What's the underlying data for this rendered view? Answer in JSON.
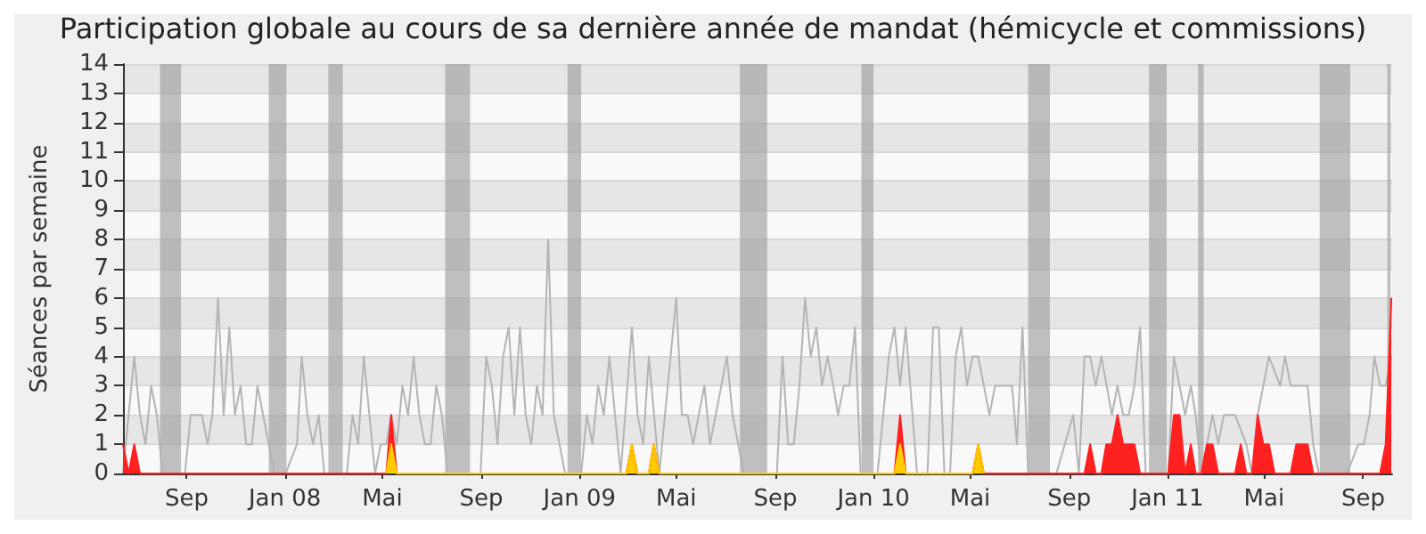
{
  "chart_data": {
    "type": "line",
    "title": "Participation globale au cours de sa dernière année de mandat (hémicycle et commissions)",
    "ylabel": "Séances par semaine",
    "xlim": [
      "2007-06-14",
      "2011-10-07"
    ],
    "xticks": [
      {
        "value": "2007-09-01",
        "label": "Sep"
      },
      {
        "value": "2008-01-01",
        "label": "Jan 08"
      },
      {
        "value": "2008-05-01",
        "label": "Mai"
      },
      {
        "value": "2008-09-01",
        "label": "Sep"
      },
      {
        "value": "2009-01-01",
        "label": "Jan 09"
      },
      {
        "value": "2009-05-01",
        "label": "Mai"
      },
      {
        "value": "2009-09-01",
        "label": "Sep"
      },
      {
        "value": "2010-01-01",
        "label": "Jan 10"
      },
      {
        "value": "2010-05-01",
        "label": "Mai"
      },
      {
        "value": "2010-09-01",
        "label": "Sep"
      },
      {
        "value": "2011-01-01",
        "label": "Jan 11"
      },
      {
        "value": "2011-05-01",
        "label": "Mai"
      },
      {
        "value": "2011-09-01",
        "label": "Sep"
      }
    ],
    "ylim": [
      0,
      14
    ],
    "yticks": [
      0,
      1,
      2,
      3,
      4,
      5,
      6,
      7,
      8,
      9,
      10,
      11,
      12,
      13,
      14
    ],
    "grid": "y",
    "bands": [
      {
        "axis": "x",
        "from": "2007-07-30",
        "to": "2007-08-25",
        "color": "#a0a0a0"
      },
      {
        "axis": "x",
        "from": "2007-12-12",
        "to": "2008-01-03",
        "color": "#a0a0a0"
      },
      {
        "axis": "x",
        "from": "2008-02-24",
        "to": "2008-03-13",
        "color": "#a0a0a0"
      },
      {
        "axis": "x",
        "from": "2008-07-18",
        "to": "2008-08-18",
        "color": "#a0a0a0"
      },
      {
        "axis": "x",
        "from": "2008-12-17",
        "to": "2009-01-03",
        "color": "#a0a0a0"
      },
      {
        "axis": "x",
        "from": "2009-07-19",
        "to": "2009-08-22",
        "color": "#a0a0a0"
      },
      {
        "axis": "x",
        "from": "2009-12-17",
        "to": "2010-01-01",
        "color": "#a0a0a0"
      },
      {
        "axis": "x",
        "from": "2010-07-12",
        "to": "2010-08-08",
        "color": "#a0a0a0"
      },
      {
        "axis": "x",
        "from": "2010-12-09",
        "to": "2010-12-31",
        "color": "#a0a0a0"
      },
      {
        "axis": "x",
        "from": "2011-02-08",
        "to": "2011-02-15",
        "color": "#a0a0a0"
      },
      {
        "axis": "x",
        "from": "2011-07-09",
        "to": "2011-08-16",
        "color": "#a0a0a0"
      },
      {
        "axis": "x",
        "from": "2011-10-01",
        "to": "2011-10-05",
        "color": "#a0a0a0"
      }
    ],
    "series": [
      {
        "type": "line",
        "color": "#b4b4b4",
        "x": [
          "2007-06-14",
          "2007-06-28",
          "2007-07-05",
          "2007-07-12",
          "2007-07-19",
          "2007-07-26",
          "2007-08-02",
          "2007-08-30",
          "2007-09-06",
          "2007-09-20",
          "2007-09-27",
          "2007-10-03",
          "2007-10-10",
          "2007-10-17",
          "2007-10-24",
          "2007-10-31",
          "2007-11-07",
          "2007-11-14",
          "2007-11-21",
          "2007-11-28",
          "2007-12-05",
          "2007-12-19",
          "2008-01-02",
          "2008-01-16",
          "2008-01-22",
          "2008-01-29",
          "2008-02-05",
          "2008-02-12",
          "2008-02-19",
          "2008-03-18",
          "2008-03-25",
          "2008-04-01",
          "2008-04-08",
          "2008-04-15",
          "2008-04-22",
          "2008-04-29",
          "2008-05-06",
          "2008-05-12",
          "2008-05-19",
          "2008-05-26",
          "2008-06-02",
          "2008-06-09",
          "2008-06-16",
          "2008-06-23",
          "2008-06-30",
          "2008-07-07",
          "2008-07-14",
          "2008-07-21",
          "2008-08-31",
          "2008-09-07",
          "2008-09-14",
          "2008-09-21",
          "2008-09-28",
          "2008-10-05",
          "2008-10-12",
          "2008-10-19",
          "2008-10-26",
          "2008-11-02",
          "2008-11-09",
          "2008-11-16",
          "2008-11-23",
          "2008-11-30",
          "2008-12-14",
          "2009-01-03",
          "2009-01-10",
          "2009-01-17",
          "2009-01-24",
          "2009-01-31",
          "2009-02-07",
          "2009-02-14",
          "2009-02-21",
          "2009-03-07",
          "2009-03-14",
          "2009-03-21",
          "2009-03-28",
          "2009-04-10",
          "2009-04-24",
          "2009-05-01",
          "2009-05-08",
          "2009-05-15",
          "2009-05-22",
          "2009-05-29",
          "2009-06-05",
          "2009-06-12",
          "2009-06-19",
          "2009-06-26",
          "2009-07-03",
          "2009-07-10",
          "2009-07-24",
          "2009-09-03",
          "2009-09-10",
          "2009-09-17",
          "2009-09-24",
          "2009-10-01",
          "2009-10-08",
          "2009-10-15",
          "2009-10-22",
          "2009-10-29",
          "2009-11-05",
          "2009-11-12",
          "2009-11-18",
          "2009-11-25",
          "2009-12-02",
          "2009-12-09",
          "2009-12-16",
          "2010-01-06",
          "2010-01-13",
          "2010-01-20",
          "2010-01-27",
          "2010-02-03",
          "2010-02-10",
          "2010-02-24",
          "2010-03-09",
          "2010-03-16",
          "2010-03-23",
          "2010-03-30",
          "2010-04-06",
          "2010-04-13",
          "2010-04-20",
          "2010-04-27",
          "2010-05-04",
          "2010-05-11",
          "2010-05-25",
          "2010-06-01",
          "2010-06-22",
          "2010-06-28",
          "2010-07-05",
          "2010-07-12",
          "2010-08-16",
          "2010-09-06",
          "2010-09-13",
          "2010-09-20",
          "2010-09-27",
          "2010-10-04",
          "2010-10-11",
          "2010-10-24",
          "2010-10-31",
          "2010-11-07",
          "2010-11-14",
          "2010-11-21",
          "2010-11-28",
          "2010-12-05",
          "2011-01-02",
          "2011-01-09",
          "2011-01-23",
          "2011-01-30",
          "2011-02-05",
          "2011-02-12",
          "2011-02-26",
          "2011-03-05",
          "2011-03-12",
          "2011-03-26",
          "2011-04-09",
          "2011-04-16",
          "2011-04-23",
          "2011-05-07",
          "2011-05-21",
          "2011-05-27",
          "2011-06-03",
          "2011-06-24",
          "2011-07-01",
          "2011-07-08",
          "2011-08-12",
          "2011-08-26",
          "2011-09-02",
          "2011-09-09",
          "2011-09-15",
          "2011-09-22",
          "2011-09-29",
          "2011-10-06"
        ],
        "values": [
          0,
          4,
          2,
          1,
          3,
          2,
          0,
          0,
          2,
          2,
          1,
          2,
          6,
          2,
          5,
          2,
          3,
          1,
          1,
          3,
          2,
          0,
          0,
          1,
          4,
          2,
          1,
          2,
          0,
          0,
          2,
          1,
          4,
          2,
          0,
          1,
          1,
          2,
          1,
          3,
          2,
          4,
          2,
          1,
          1,
          3,
          2,
          0,
          0,
          4,
          3,
          1,
          4,
          5,
          2,
          5,
          2,
          1,
          3,
          2,
          8,
          2,
          0,
          0,
          2,
          1,
          3,
          2,
          4,
          2,
          0,
          5,
          2,
          1,
          4,
          0,
          4,
          6,
          2,
          2,
          1,
          2,
          3,
          1,
          2,
          3,
          4,
          2,
          0,
          0,
          4,
          1,
          1,
          3,
          6,
          4,
          5,
          3,
          4,
          3,
          2,
          3,
          3,
          5,
          0,
          0,
          2,
          4,
          5,
          3,
          5,
          0,
          0,
          5,
          5,
          0,
          0,
          4,
          5,
          3,
          4,
          4,
          2,
          3,
          3,
          1,
          5,
          0,
          0,
          2,
          0,
          4,
          4,
          3,
          4,
          2,
          3,
          2,
          2,
          3,
          5,
          0,
          0,
          4,
          2,
          3,
          2,
          0,
          2,
          1,
          2,
          2,
          1,
          0,
          2,
          4,
          3,
          4,
          3,
          3,
          1,
          0,
          0,
          1,
          1,
          2,
          4,
          3,
          3,
          4
        ]
      },
      {
        "type": "area",
        "color": "#ff2020",
        "x": [
          "2007-06-14",
          "2007-06-21",
          "2007-06-28",
          "2007-07-05",
          "2008-05-06",
          "2008-05-12",
          "2008-05-19",
          "2009-02-28",
          "2009-03-07",
          "2009-03-14",
          "2009-03-28",
          "2009-04-03",
          "2009-04-10",
          "2010-01-27",
          "2010-02-03",
          "2010-02-10",
          "2010-05-04",
          "2010-05-11",
          "2010-05-18",
          "2010-09-20",
          "2010-09-27",
          "2010-10-04",
          "2010-10-11",
          "2010-10-17",
          "2010-10-24",
          "2010-10-31",
          "2010-11-07",
          "2010-11-14",
          "2010-11-21",
          "2010-11-28",
          "2011-01-02",
          "2011-01-09",
          "2011-01-16",
          "2011-01-23",
          "2011-01-30",
          "2011-02-05",
          "2011-02-12",
          "2011-02-19",
          "2011-02-26",
          "2011-03-05",
          "2011-03-26",
          "2011-04-02",
          "2011-04-09",
          "2011-04-16",
          "2011-04-23",
          "2011-04-30",
          "2011-05-07",
          "2011-05-14",
          "2011-06-03",
          "2011-06-10",
          "2011-06-17",
          "2011-06-24",
          "2011-07-01",
          "2011-09-22",
          "2011-09-29",
          "2011-10-06"
        ],
        "values": [
          1,
          0,
          1,
          0,
          0,
          2,
          0,
          0,
          1,
          0,
          0,
          1,
          0,
          0,
          2,
          0,
          0,
          1,
          0,
          0,
          1,
          0,
          0,
          1,
          1,
          2,
          1,
          1,
          1,
          0,
          0,
          2,
          2,
          0,
          1,
          0,
          0,
          1,
          1,
          0,
          0,
          1,
          0,
          0,
          2,
          1,
          1,
          0,
          0,
          1,
          1,
          1,
          0,
          0,
          1,
          6
        ]
      },
      {
        "type": "area",
        "color": "#ffcc00",
        "x": [
          "2008-05-06",
          "2008-05-12",
          "2008-05-19",
          "2009-02-28",
          "2009-03-07",
          "2009-03-14",
          "2009-03-28",
          "2009-04-03",
          "2009-04-10",
          "2010-01-27",
          "2010-02-03",
          "2010-02-10",
          "2010-05-04",
          "2010-05-11",
          "2010-05-18"
        ],
        "values": [
          0,
          1,
          0,
          0,
          1,
          0,
          0,
          1,
          0,
          0,
          1,
          0,
          0,
          1,
          0
        ]
      }
    ]
  }
}
